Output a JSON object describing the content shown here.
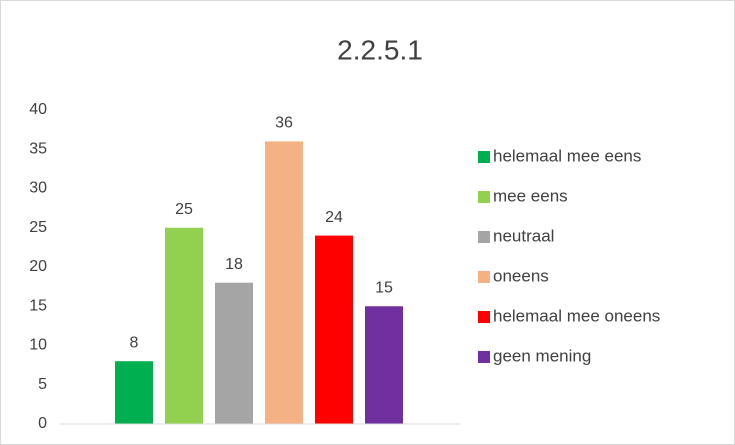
{
  "chart_data": {
    "type": "bar",
    "title": "2.2.5.1",
    "series": [
      {
        "name": "helemaal mee eens",
        "color": "#00b050",
        "values": [
          8
        ]
      },
      {
        "name": "mee eens",
        "color": "#92d050",
        "values": [
          25
        ]
      },
      {
        "name": "neutraal",
        "color": "#a5a5a5",
        "values": [
          18
        ]
      },
      {
        "name": "oneens",
        "color": "#f4b183",
        "values": [
          36
        ]
      },
      {
        "name": "helemaal mee oneens",
        "color": "#ff0000",
        "values": [
          24
        ]
      },
      {
        "name": "geen mening",
        "color": "#7030a0",
        "values": [
          15
        ]
      }
    ],
    "ylim": [
      0,
      40
    ],
    "yticks": [
      0,
      5,
      10,
      15,
      20,
      25,
      30,
      35,
      40
    ],
    "grid": false,
    "legend": "right"
  }
}
